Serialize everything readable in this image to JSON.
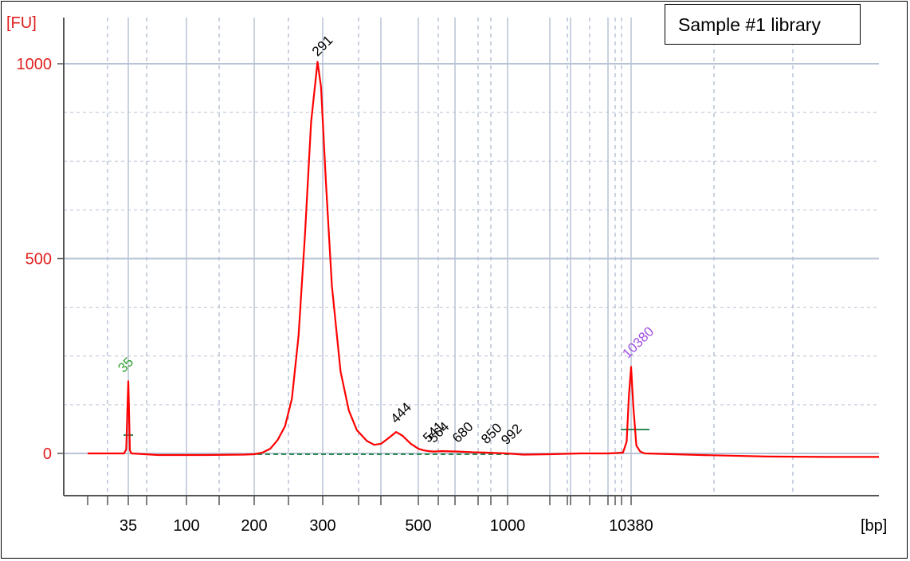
{
  "chart_data": {
    "type": "line",
    "title": "Sample #1 library",
    "y_unit_label": "[FU]",
    "x_unit_label": "[bp]",
    "y_ticks": [
      0,
      500,
      1000
    ],
    "x_ticks": [
      "35",
      "100",
      "200",
      "300",
      "500",
      "1000",
      "10380"
    ],
    "ylim": [
      -107,
      1160
    ],
    "x_scale": "log-like (Bioanalyzer sizing scale)",
    "grid": true,
    "colors": {
      "trace": "#ff0000",
      "grid": "#b8c4d6",
      "lower_marker": "#2e9e2e",
      "upper_marker": "#a050e0",
      "peak_label": "#000000",
      "baseline": "#2e8b57"
    },
    "series": [
      {
        "points": [
          [
            20,
            0
          ],
          [
            33,
            0
          ],
          [
            34,
            10
          ],
          [
            34.6,
            120
          ],
          [
            35,
            185
          ],
          [
            35.4,
            120
          ],
          [
            36,
            8
          ],
          [
            37,
            0
          ],
          [
            60,
            -4
          ],
          [
            120,
            -4
          ],
          [
            180,
            -3
          ],
          [
            200,
            -2
          ],
          [
            210,
            2
          ],
          [
            220,
            12
          ],
          [
            230,
            35
          ],
          [
            240,
            70
          ],
          [
            250,
            140
          ],
          [
            260,
            300
          ],
          [
            270,
            560
          ],
          [
            280,
            850
          ],
          [
            291,
            1005
          ],
          [
            297,
            940
          ],
          [
            305,
            700
          ],
          [
            315,
            430
          ],
          [
            330,
            210
          ],
          [
            345,
            110
          ],
          [
            360,
            60
          ],
          [
            380,
            32
          ],
          [
            395,
            22
          ],
          [
            410,
            25
          ],
          [
            425,
            38
          ],
          [
            444,
            55
          ],
          [
            460,
            45
          ],
          [
            480,
            25
          ],
          [
            500,
            12
          ],
          [
            520,
            8
          ],
          [
            541,
            6
          ],
          [
            564,
            5
          ],
          [
            600,
            6
          ],
          [
            680,
            5
          ],
          [
            760,
            3
          ],
          [
            850,
            2
          ],
          [
            992,
            0
          ],
          [
            1300,
            -3
          ],
          [
            2000,
            -2
          ],
          [
            4000,
            0
          ],
          [
            7000,
            0
          ],
          [
            9000,
            2
          ],
          [
            9600,
            30
          ],
          [
            10000,
            150
          ],
          [
            10380,
            222
          ],
          [
            10600,
            120
          ],
          [
            10900,
            20
          ],
          [
            11300,
            5
          ],
          [
            11800,
            0
          ],
          [
            20000,
            -4
          ],
          [
            30000,
            -8
          ],
          [
            45000,
            -9
          ],
          [
            60000,
            -9
          ]
        ]
      }
    ],
    "annotations": [
      {
        "label": "35",
        "x": 35,
        "y": 185,
        "color": "#2e9e2e"
      },
      {
        "label": "291",
        "x": 291,
        "y": 1005,
        "color": "#000000"
      },
      {
        "label": "444",
        "x": 444,
        "y": 55,
        "color": "#000000"
      },
      {
        "label": "541",
        "x": 541,
        "y": 6,
        "color": "#000000"
      },
      {
        "label": "564",
        "x": 564,
        "y": 5,
        "color": "#000000"
      },
      {
        "label": "680",
        "x": 680,
        "y": 5,
        "color": "#000000"
      },
      {
        "label": "850",
        "x": 850,
        "y": 2,
        "color": "#000000"
      },
      {
        "label": "992",
        "x": 992,
        "y": 0,
        "color": "#000000"
      },
      {
        "label": "10380",
        "x": 10380,
        "y": 222,
        "color": "#a050e0"
      }
    ]
  }
}
